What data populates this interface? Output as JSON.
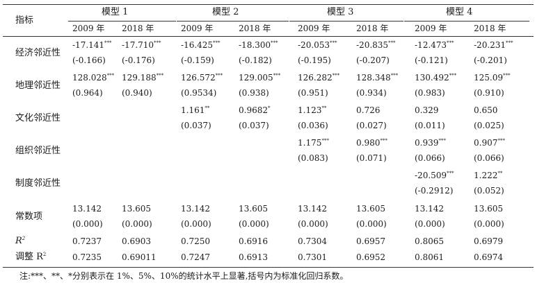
{
  "header": {
    "indicator": "指标",
    "models": [
      "模型 1",
      "模型 2",
      "模型 3",
      "模型 4"
    ],
    "years": [
      "2009 年",
      "2018 年",
      "2009 年",
      "2018 年",
      "2009 年",
      "2018 年",
      "2009 年",
      "2018 年"
    ]
  },
  "rows": [
    {
      "label": "经济邻近性",
      "cells": [
        {
          "c": 0,
          "v": "-17.141",
          "s": "***",
          "p": "(-0.166)"
        },
        {
          "c": 1,
          "v": "-17.710",
          "s": "***",
          "p": "(-0.176)"
        },
        {
          "c": 2,
          "v": "-16.425",
          "s": "***",
          "p": "(-0.159)"
        },
        {
          "c": 3,
          "v": "-18.300",
          "s": "***",
          "p": "(-0.182)"
        },
        {
          "c": 4,
          "v": "-20.053",
          "s": "***",
          "p": "(-0.195)"
        },
        {
          "c": 5,
          "v": "-20.835",
          "s": "***",
          "p": "(-0.207)"
        },
        {
          "c": 6,
          "v": "-12.473",
          "s": "***",
          "p": "(-0.121)"
        },
        {
          "c": 7,
          "v": "-20.231",
          "s": "***",
          "p": "(-0.201)"
        }
      ]
    },
    {
      "label": "地理邻近性",
      "cells": [
        {
          "c": 0,
          "v": "128.028",
          "s": "***",
          "p": "(0.964)"
        },
        {
          "c": 1,
          "v": "129.188",
          "s": "***",
          "p": "(0.940)"
        },
        {
          "c": 2,
          "v": "126.572",
          "s": "***",
          "p": "(0.9534)"
        },
        {
          "c": 3,
          "v": "129.005",
          "s": "***",
          "p": "(0.938)"
        },
        {
          "c": 4,
          "v": "126.282",
          "s": "***",
          "p": "(0.951)"
        },
        {
          "c": 5,
          "v": "128.348",
          "s": "***",
          "p": "(0.934)"
        },
        {
          "c": 6,
          "v": "130.492",
          "s": "***",
          "p": "(0.983)"
        },
        {
          "c": 7,
          "v": "125.09",
          "s": "***",
          "p": "(0.910)"
        }
      ]
    },
    {
      "label": "文化邻近性",
      "cells": [
        {
          "c": 2,
          "v": "1.161",
          "s": "**",
          "p": "(0.037)"
        },
        {
          "c": 3,
          "v": "0.9682",
          "s": "*",
          "p": "(0.037)"
        },
        {
          "c": 4,
          "v": "1.123",
          "s": "**",
          "p": "(0.036)"
        },
        {
          "c": 5,
          "v": "0.726",
          "s": "",
          "p": "(0.027)"
        },
        {
          "c": 6,
          "v": "0.329",
          "s": "",
          "p": "(0.011)"
        },
        {
          "c": 7,
          "v": "0.650",
          "s": "",
          "p": "(0.025)"
        }
      ]
    },
    {
      "label": "组织邻近性",
      "cells": [
        {
          "c": 4,
          "v": "1.175",
          "s": "***",
          "p": "(0.083)"
        },
        {
          "c": 5,
          "v": "0.980",
          "s": "***",
          "p": "(0.071)"
        },
        {
          "c": 6,
          "v": "0.939",
          "s": "***",
          "p": "(0.066)"
        },
        {
          "c": 7,
          "v": "0.907",
          "s": "***",
          "p": "(0.066)"
        }
      ]
    },
    {
      "label": "制度邻近性",
      "cells": [
        {
          "c": 6,
          "v": "-20.509",
          "s": "***",
          "p": "(-0.2912)"
        },
        {
          "c": 7,
          "v": "1.222",
          "s": "**",
          "p": "(0.052)"
        }
      ]
    },
    {
      "label": "常数项",
      "cells": [
        {
          "c": 0,
          "v": "13.142",
          "s": "",
          "p": "(0.000)"
        },
        {
          "c": 1,
          "v": "13.605",
          "s": "",
          "p": "(0.000)"
        },
        {
          "c": 2,
          "v": "13.142",
          "s": "",
          "p": "(0.000)"
        },
        {
          "c": 3,
          "v": "13.605",
          "s": "",
          "p": "(0.000)"
        },
        {
          "c": 4,
          "v": "13.142",
          "s": "",
          "p": "(0.000)"
        },
        {
          "c": 5,
          "v": "13.605",
          "s": "",
          "p": "(0.000)"
        },
        {
          "c": 6,
          "v": "13.142",
          "s": "",
          "p": "(0.000)"
        },
        {
          "c": 7,
          "v": "13.605",
          "s": "",
          "p": "(0.000)"
        }
      ]
    }
  ],
  "r2": {
    "label": "R",
    "values": [
      "0.7237",
      "0.6903",
      "0.7250",
      "0.6916",
      "0.7304",
      "0.6957",
      "0.8065",
      "0.6979"
    ]
  },
  "adj_r2": {
    "label": "调整 R",
    "values": [
      "0.7235",
      "0.69011",
      "0.7247",
      "0.6913",
      "0.7301",
      "0.6952",
      "0.8061",
      "0.6974"
    ]
  },
  "note": "注:***、**、*分别表示在 1%、5%、10%的统计水平上显著,括号内为标准化回归系数。"
}
